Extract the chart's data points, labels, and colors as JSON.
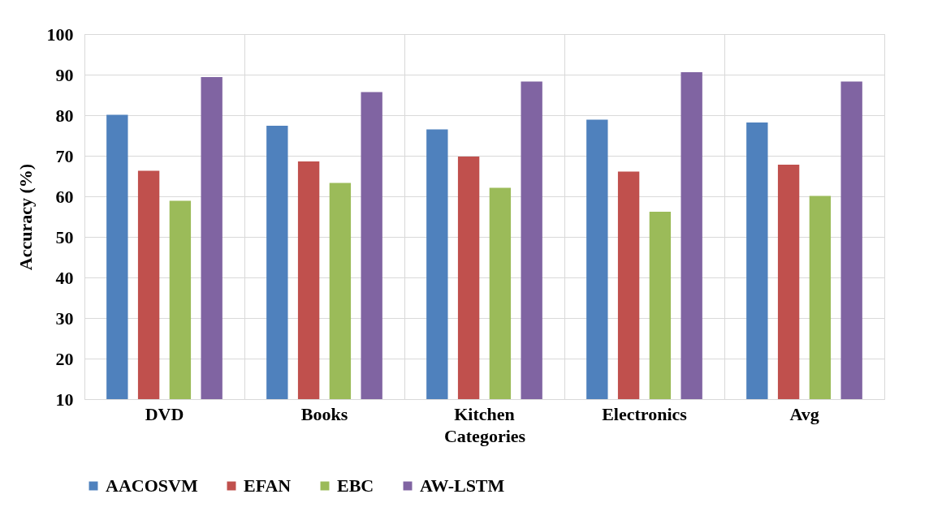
{
  "chart_data": {
    "type": "bar",
    "xlabel": "Categories",
    "ylabel": "Accuracy (%)",
    "categories": [
      "DVD",
      "Books",
      "Kitchen",
      "Electronics",
      "Avg"
    ],
    "series": [
      {
        "name": "AACOSVM",
        "color": "#4f81bd",
        "values": [
          80.1,
          77.4,
          76.5,
          78.9,
          78.2
        ]
      },
      {
        "name": "EFAN",
        "color": "#c0504d",
        "values": [
          66.3,
          68.6,
          69.8,
          66.1,
          67.8
        ]
      },
      {
        "name": "EBC",
        "color": "#9bbb59",
        "values": [
          58.9,
          63.3,
          62.1,
          56.2,
          60.1
        ]
      },
      {
        "name": "AW-LSTM",
        "color": "#8064a2",
        "values": [
          89.4,
          85.7,
          88.3,
          90.6,
          88.3
        ]
      }
    ],
    "ylim": [
      10,
      100
    ],
    "yticks": [
      10,
      20,
      30,
      40,
      50,
      60,
      70,
      80,
      90,
      100
    ],
    "grid": true,
    "legend": "bottom"
  }
}
